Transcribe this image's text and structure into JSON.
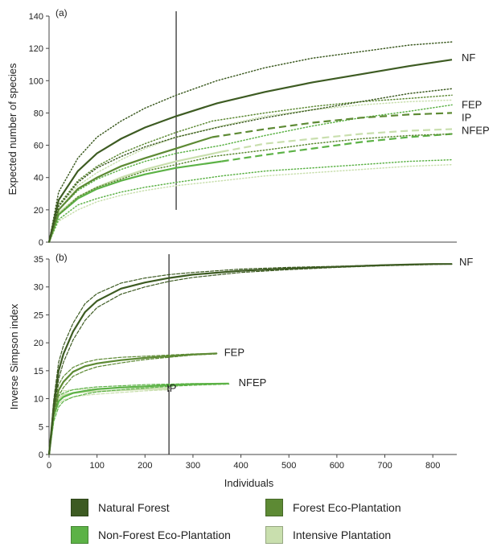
{
  "colors": {
    "NF": "#3d5b22",
    "FEP": "#5d8a34",
    "NFEP": "#5cb246",
    "IP": "#c9dfae"
  },
  "legend": [
    {
      "key": "NF",
      "label": "Natural Forest"
    },
    {
      "key": "FEP",
      "label": "Forest Eco-Plantation"
    },
    {
      "key": "NFEP",
      "label": "Non-Forest Eco-Plantation"
    },
    {
      "key": "IP",
      "label": "Intensive Plantation"
    }
  ],
  "chart_data": [
    {
      "type": "line",
      "panel_label": "(a)",
      "ylabel": "Expected number of species",
      "xlim": [
        0,
        850
      ],
      "ylim": [
        0,
        140
      ],
      "yticks": [
        0,
        20,
        40,
        60,
        80,
        100,
        120,
        140
      ],
      "xticks": [],
      "vline_x": 265,
      "end_labels": [
        {
          "text": "NF",
          "x": 850,
          "y": 114
        },
        {
          "text": "FEP",
          "x": 850,
          "y": 85
        },
        {
          "text": "IP",
          "x": 850,
          "y": 77
        },
        {
          "text": "NFEP",
          "x": 850,
          "y": 69
        }
      ],
      "series": [
        {
          "key": "NF",
          "x": [
            0,
            20,
            60,
            100,
            150,
            200,
            265,
            350,
            450,
            550,
            650,
            750,
            840
          ],
          "y": [
            0,
            26,
            44,
            55,
            64,
            71,
            78,
            86,
            93,
            99,
            104,
            109,
            113
          ],
          "lower": [
            0,
            22,
            37,
            46,
            53,
            59,
            65,
            71,
            77,
            82,
            87,
            92,
            95
          ],
          "upper": [
            0,
            31,
            52,
            65,
            75,
            83,
            91,
            100,
            108,
            114,
            118,
            122,
            124
          ],
          "extrapolated_from": null
        },
        {
          "key": "FEP",
          "x": [
            0,
            20,
            60,
            100,
            150,
            200,
            265,
            340,
            450,
            550,
            650,
            750,
            840
          ],
          "y": [
            0,
            20,
            33,
            40,
            47,
            52,
            58,
            65,
            70,
            74,
            77,
            79,
            80
          ],
          "lower": [
            0,
            17,
            28,
            34,
            39,
            44,
            48,
            53,
            57,
            61,
            64,
            66,
            67
          ],
          "upper": [
            0,
            23,
            38,
            47,
            55,
            61,
            68,
            75,
            80,
            84,
            87,
            89,
            91
          ],
          "extrapolated_from": 340
        },
        {
          "key": "NFEP",
          "x": [
            0,
            20,
            60,
            100,
            150,
            200,
            265,
            360,
            450,
            550,
            650,
            750,
            840
          ],
          "y": [
            0,
            17,
            27,
            33,
            38,
            42,
            46,
            50,
            54,
            58,
            62,
            65,
            67
          ],
          "lower": [
            0,
            14,
            23,
            27,
            31,
            34,
            37,
            41,
            44,
            46,
            48,
            50,
            51
          ],
          "upper": [
            0,
            20,
            32,
            39,
            45,
            50,
            55,
            60,
            66,
            72,
            77,
            81,
            85
          ],
          "extrapolated_from": 360
        },
        {
          "key": "IP",
          "x": [
            0,
            20,
            60,
            100,
            150,
            200,
            265,
            360,
            450,
            550,
            650,
            750,
            840
          ],
          "y": [
            0,
            18,
            28,
            34,
            40,
            45,
            50,
            56,
            61,
            64,
            67,
            69,
            70
          ],
          "lower": [
            0,
            13,
            20,
            25,
            29,
            32,
            35,
            38,
            41,
            43,
            45,
            47,
            48
          ],
          "upper": [
            0,
            22,
            35,
            43,
            51,
            58,
            65,
            72,
            78,
            82,
            85,
            87,
            88
          ],
          "extrapolated_from": 360
        }
      ]
    },
    {
      "type": "line",
      "panel_label": "(b)",
      "ylabel": "Inverse Simpson index",
      "xlabel": "Individuals",
      "xlim": [
        0,
        850
      ],
      "ylim": [
        0,
        35
      ],
      "yticks": [
        0,
        5,
        10,
        15,
        20,
        25,
        30,
        35
      ],
      "xticks": [
        0,
        100,
        200,
        300,
        400,
        500,
        600,
        700,
        800
      ],
      "vline_x": 250,
      "end_labels": [
        {
          "text": "NF",
          "x": 845,
          "y": 34.4
        },
        {
          "text": "FEP",
          "x": 355,
          "y": 18.2
        },
        {
          "text": "NFEP",
          "x": 385,
          "y": 12.8
        },
        {
          "text": "IP",
          "x": 235,
          "y": 11.8
        }
      ],
      "series": [
        {
          "key": "NF",
          "x": [
            0,
            10,
            20,
            30,
            50,
            75,
            100,
            150,
            200,
            250,
            300,
            400,
            500,
            600,
            700,
            800,
            840
          ],
          "y": [
            0,
            9,
            15,
            18,
            22,
            25.5,
            27.5,
            29.7,
            30.8,
            31.6,
            32.2,
            32.9,
            33.3,
            33.6,
            33.9,
            34.1,
            34.1
          ],
          "lower": [
            0,
            8,
            13.5,
            16.5,
            20.5,
            24,
            26.3,
            28.7,
            30,
            31,
            31.7,
            32.6,
            33.1,
            33.5,
            33.8,
            34,
            34.1
          ],
          "upper": [
            0,
            10,
            16.5,
            19.5,
            23.5,
            27,
            28.8,
            30.7,
            31.6,
            32.2,
            32.6,
            33.2,
            33.5,
            33.7,
            33.95,
            34.1,
            34.1
          ],
          "extrapolated_from": null
        },
        {
          "key": "FEP",
          "x": [
            0,
            10,
            20,
            30,
            50,
            75,
            100,
            150,
            200,
            250,
            300,
            350
          ],
          "y": [
            0,
            8,
            11.5,
            13,
            14.8,
            15.8,
            16.3,
            16.9,
            17.3,
            17.6,
            17.9,
            18.1
          ],
          "lower": [
            0,
            7,
            10.5,
            12,
            14,
            15,
            15.7,
            16.4,
            17,
            17.4,
            17.8,
            18
          ],
          "upper": [
            0,
            9,
            12.5,
            14,
            15.6,
            16.5,
            17,
            17.4,
            17.6,
            17.8,
            18,
            18.1
          ],
          "extrapolated_from": null
        },
        {
          "key": "NFEP",
          "x": [
            0,
            10,
            20,
            30,
            50,
            75,
            100,
            150,
            200,
            250,
            300,
            375
          ],
          "y": [
            0,
            7,
            9.5,
            10.3,
            11,
            11.4,
            11.7,
            12,
            12.2,
            12.4,
            12.6,
            12.7
          ],
          "lower": [
            0,
            6,
            8.5,
            9.5,
            10.3,
            10.8,
            11.2,
            11.6,
            11.9,
            12.2,
            12.4,
            12.6
          ],
          "upper": [
            0,
            8,
            10.5,
            11,
            11.6,
            11.9,
            12.1,
            12.3,
            12.5,
            12.6,
            12.7,
            12.7
          ],
          "extrapolated_from": null
        },
        {
          "key": "IP",
          "x": [
            0,
            10,
            20,
            30,
            50,
            75,
            100,
            150,
            200,
            250
          ],
          "y": [
            0,
            8,
            10,
            10.7,
            11,
            11.2,
            11.3,
            11.5,
            11.7,
            11.8
          ],
          "lower": [
            0,
            7,
            9,
            9.8,
            10.3,
            10.6,
            10.8,
            11.1,
            11.4,
            11.6
          ],
          "upper": [
            0,
            9,
            11,
            11.4,
            11.6,
            11.7,
            11.8,
            11.9,
            12,
            12
          ],
          "extrapolated_from": null
        }
      ]
    }
  ]
}
